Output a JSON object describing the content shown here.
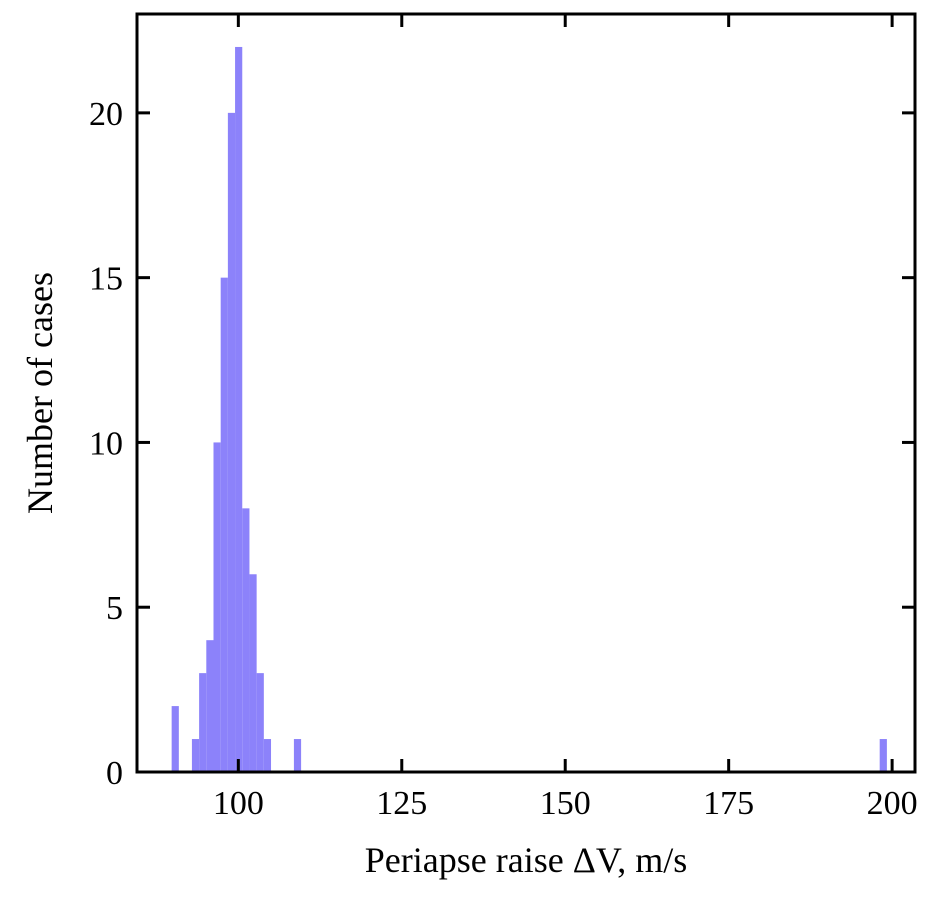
{
  "chart_data": {
    "type": "bar",
    "subtype": "histogram",
    "title": "",
    "xlabel": "Periapse raise ΔV, m/s",
    "ylabel": "Number of cases",
    "xlim": [
      84.5,
      203.5
    ],
    "ylim": [
      0,
      23
    ],
    "xticks": [
      100,
      125,
      150,
      175,
      200
    ],
    "yticks": [
      0,
      5,
      10,
      15,
      20
    ],
    "xtick_labels": [
      "100",
      "125",
      "150",
      "175",
      "200"
    ],
    "ytick_labels": [
      "0",
      "5",
      "10",
      "15",
      "20"
    ],
    "bar_color": "#8c82fa",
    "grid": false,
    "bins": [
      {
        "x0": 89.8,
        "x1": 90.9,
        "count": 2
      },
      {
        "x0": 92.9,
        "x1": 94.0,
        "count": 1
      },
      {
        "x0": 94.0,
        "x1": 95.1,
        "count": 3
      },
      {
        "x0": 95.1,
        "x1": 96.2,
        "count": 4
      },
      {
        "x0": 96.2,
        "x1": 97.3,
        "count": 10
      },
      {
        "x0": 97.3,
        "x1": 98.4,
        "count": 15
      },
      {
        "x0": 98.4,
        "x1": 99.5,
        "count": 20
      },
      {
        "x0": 99.5,
        "x1": 100.6,
        "count": 22
      },
      {
        "x0": 100.6,
        "x1": 101.7,
        "count": 8
      },
      {
        "x0": 101.7,
        "x1": 102.8,
        "count": 6
      },
      {
        "x0": 102.8,
        "x1": 103.9,
        "count": 3
      },
      {
        "x0": 103.9,
        "x1": 105.0,
        "count": 1
      },
      {
        "x0": 108.5,
        "x1": 109.6,
        "count": 1
      },
      {
        "x0": 198.1,
        "x1": 199.2,
        "count": 1
      }
    ]
  }
}
